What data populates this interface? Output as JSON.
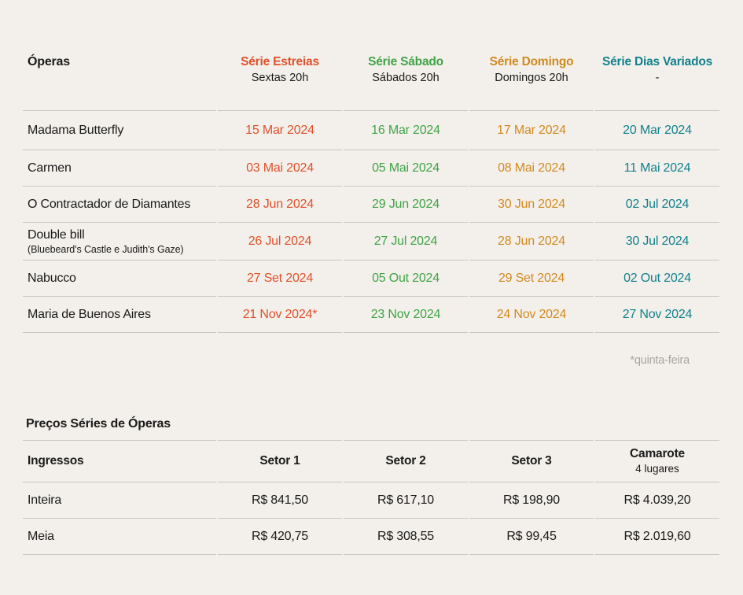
{
  "theme": {
    "background": "#F3F0EB",
    "divider_line": "#C9C5BF",
    "text": "#1A1A19",
    "muted_text": "#A8A49C"
  },
  "opera_table": {
    "col_header": "Óperas",
    "series": [
      {
        "label": "Série Estreias",
        "sub": "Sextas 20h",
        "color": "#E0502B"
      },
      {
        "label": "Série Sábado",
        "sub": "Sábados 20h",
        "color": "#3FA345"
      },
      {
        "label": "Série Domingo",
        "sub": "Domingos 20h",
        "color": "#D1891F"
      },
      {
        "label": "Série Dias Variados",
        "sub": "-",
        "color": "#10808D"
      }
    ],
    "rows": [
      {
        "name": "Madama Butterfly",
        "dates": [
          "15 Mar 2024",
          "16 Mar 2024",
          "17 Mar 2024",
          "20 Mar 2024"
        ]
      },
      {
        "name": "Carmen",
        "dates": [
          "03 Mai 2024",
          "05 Mai 2024",
          "08 Mai 2024",
          "11 Mai 2024"
        ]
      },
      {
        "name": "O Contractador de Diamantes",
        "dates": [
          "28 Jun 2024",
          "29 Jun 2024",
          "30 Jun 2024",
          "02 Jul 2024"
        ]
      },
      {
        "name": "Double bill",
        "name2": "(Bluebeard's Castle e Judith's Gaze)",
        "dates": [
          "26 Jul 2024",
          "27 Jul 2024",
          "28 Jun 2024",
          "30 Jul 2024"
        ]
      },
      {
        "name": "Nabucco",
        "dates": [
          "27 Set 2024",
          "05 Out 2024",
          "29 Set 2024",
          "02 Out 2024"
        ]
      },
      {
        "name": "Maria de Buenos Aires",
        "dates": [
          "21 Nov 2024*",
          "23 Nov 2024",
          "24 Nov 2024",
          "27 Nov 2024"
        ]
      }
    ],
    "footnote": "*quinta-feira"
  },
  "price_table": {
    "title": "Preços Séries de Óperas",
    "col_header": "Ingressos",
    "columns": [
      {
        "label": "Setor 1",
        "sub": ""
      },
      {
        "label": "Setor 2",
        "sub": ""
      },
      {
        "label": "Setor 3",
        "sub": ""
      },
      {
        "label": "Camarote",
        "sub": "4 lugares"
      }
    ],
    "rows": [
      {
        "name": "Inteira",
        "prices": [
          "R$ 841,50",
          "R$ 617,10",
          "R$ 198,90",
          "R$ 4.039,20"
        ]
      },
      {
        "name": "Meia",
        "prices": [
          "R$ 420,75",
          "R$ 308,55",
          "R$ 99,45",
          "R$ 2.019,60"
        ]
      }
    ]
  }
}
